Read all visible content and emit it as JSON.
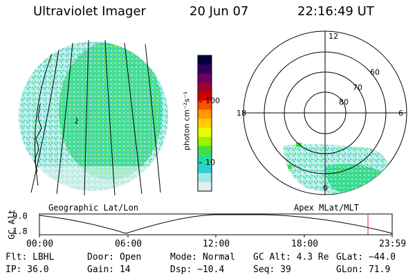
{
  "header": {
    "instrument": "Ultraviolet Imager",
    "date": "20 Jun 07",
    "time": "22:16:49 UT"
  },
  "colorbar": {
    "unit_label": "photon cm⁻²s⁻¹",
    "ticks": [
      "100",
      "10"
    ],
    "colors": [
      "#000040",
      "#300060",
      "#6a0060",
      "#a00030",
      "#d00000",
      "#ff5000",
      "#ff9a00",
      "#ffd000",
      "#e8ff00",
      "#a0f000",
      "#40e040",
      "#20e0a0",
      "#30d0d0",
      "#a0e8e8",
      "#e0f0f0"
    ]
  },
  "left_panel": {
    "caption": "Geographic Lat/Lon"
  },
  "right_panel": {
    "caption": "Apex MLat/MLT",
    "lat_labels": [
      "60",
      "70",
      "80"
    ],
    "mlt_labels": {
      "top": "12",
      "left": "18",
      "right": "6",
      "bottom": "0"
    }
  },
  "timeline": {
    "axis_label": "GC Alt",
    "y_ticks": [
      "9.0",
      "1.8"
    ],
    "x_ticks": [
      "00:00",
      "06:00",
      "12:00",
      "18:00",
      "23:59"
    ]
  },
  "info": {
    "filter_label": "Flt: LBHL",
    "door_label": "Door: Open",
    "mode_label": "Mode: Normal",
    "gcalt_label": "GC Alt: 4.3 Re",
    "glat_label": "GLat: −44.0",
    "ip_label": "IP: 36.0",
    "gain_label": "Gain: 14",
    "dsp_label": "Dsp:  −10.4",
    "seq_label": "Seq: 39",
    "glon_label": "GLon:  71.9"
  }
}
